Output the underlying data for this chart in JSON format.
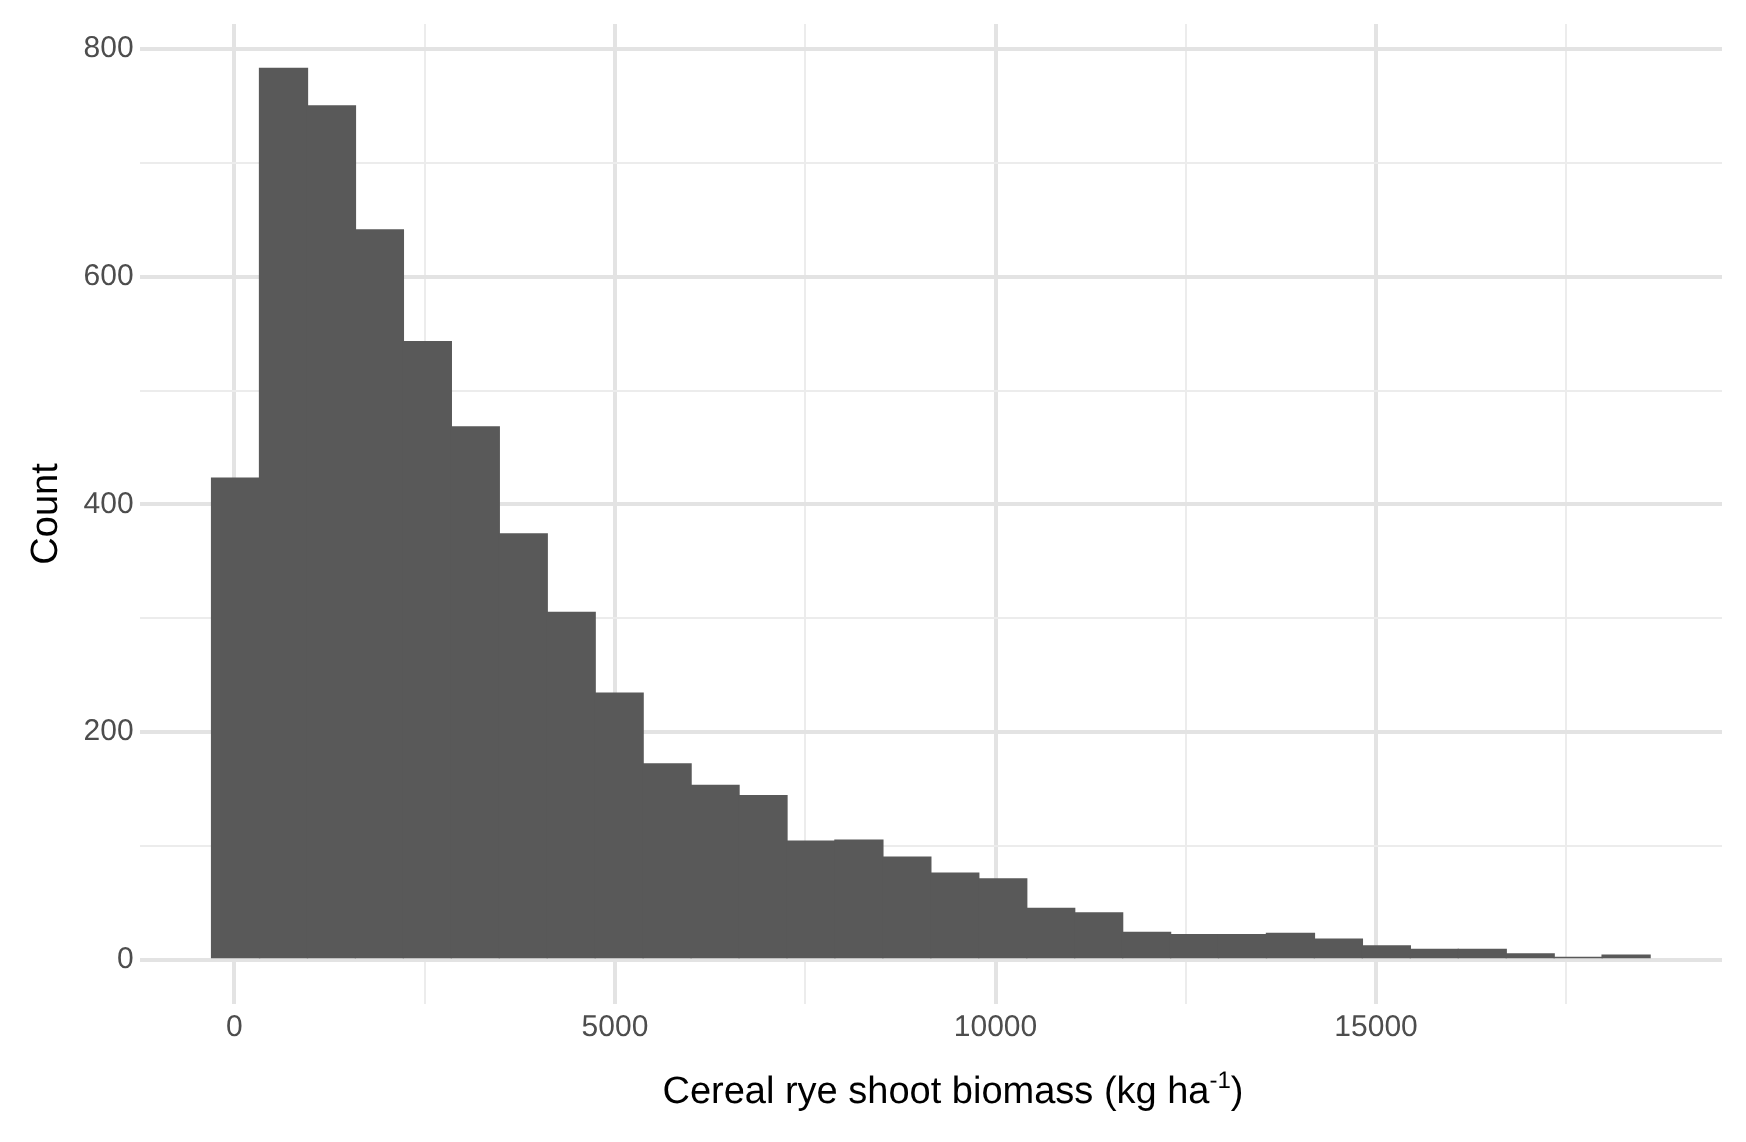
{
  "chart_data": {
    "type": "histogram",
    "xlabel": "Cereal rye shoot biomass (kg ha$^{-1}$)",
    "ylabel": "Count",
    "color": "#595959",
    "bins": [
      -300,
      330,
      960,
      1590,
      2220,
      2850,
      3480,
      4110,
      4740,
      5370,
      6000,
      6630,
      7260,
      7890,
      8520,
      9150,
      9780,
      10410,
      11040,
      11670,
      12300,
      12930,
      13560,
      14190,
      14820,
      15450,
      16080,
      16710,
      17340,
      17970,
      18600
    ],
    "values": [
      423,
      783,
      750,
      641,
      543,
      468,
      374,
      305,
      234,
      172,
      153,
      144,
      104,
      105,
      90,
      76,
      71,
      45,
      41,
      24,
      22,
      22,
      23,
      18,
      12,
      9,
      9,
      5,
      2,
      4
    ],
    "xlim": [
      -1245,
      19545
    ],
    "xticks": [
      0,
      {
        "value": 2500,
        "label": null
      },
      5000,
      {
        "value": 7500,
        "label": null
      },
      10000,
      {
        "value": 12500,
        "label": null
      },
      15000,
      {
        "value": 17500,
        "label": null
      }
    ],
    "ylim": [
      -39,
      822
    ],
    "yticks": [
      0,
      {
        "value": 100,
        "label": null
      },
      200,
      {
        "value": 300,
        "label": null
      },
      400,
      {
        "value": 500,
        "label": null
      },
      600,
      {
        "value": 700,
        "label": null
      },
      800
    ],
    "grid": true
  }
}
